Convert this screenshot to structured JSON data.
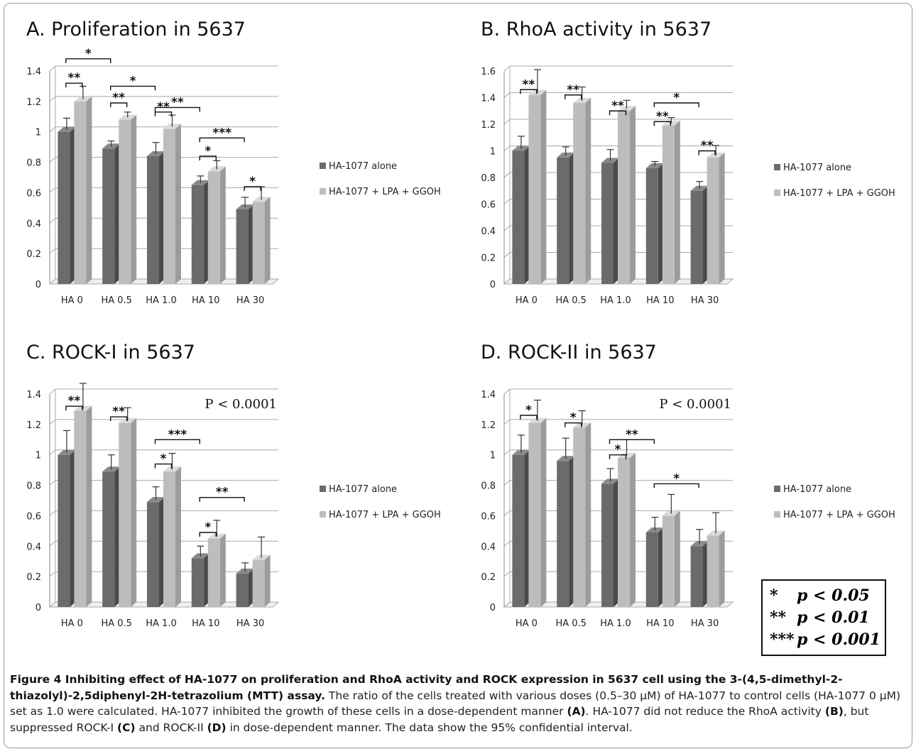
{
  "legend_items": [
    "HA-1077 alone",
    "HA-1077 + LPA + GGOH"
  ],
  "series_colors": [
    "#6b6b6b",
    "#bdbdbd"
  ],
  "significance_key": [
    {
      "symbol": "*",
      "text": "p < 0.05"
    },
    {
      "symbol": "**",
      "text": "p < 0.01"
    },
    {
      "symbol": "***",
      "text": "p < 0.001"
    }
  ],
  "caption": {
    "lead": "Figure 4 Inhibiting effect of HA-1077 on proliferation and RhoA activity and ROCK expression in 5637 cell using the 3-(4,5-dimethyl-2-thiazolyl)-2,5diphenyl-2H-tetrazolium (MTT) assay.",
    "p1": " The ratio of the cells treated with various doses (0.5–30 μM) of HA-1077 to control cells (HA-1077 0 μM) set as 1.0 were calculated. HA-1077 inhibited the growth of these cells in a dose-dependent manner ",
    "ref_a": "(A)",
    "p2": ". HA-1077 did not reduce the RhoA activity ",
    "ref_b": "(B)",
    "p3": ", but suppressed ROCK-I ",
    "ref_c": "(C)",
    "p4": " and ROCK-II ",
    "ref_d": "(D)",
    "p5": " in dose-dependent manner. The data show the 95% confidential interval."
  },
  "chart_data": [
    {
      "type": "bar",
      "title": "A. Proliferation in 5637",
      "categories": [
        "HA 0",
        "HA 0.5",
        "HA 1.0",
        "HA 10",
        "HA 30"
      ],
      "ylim": [
        0,
        1.4
      ],
      "yticks": [
        0,
        0.2,
        0.4,
        0.6,
        0.8,
        1,
        1.2,
        1.4
      ],
      "yticklabels": [
        "0",
        "0.2",
        "0.4",
        "0.6",
        "0.8",
        "1",
        "1.2",
        "1.4"
      ],
      "grid": true,
      "legend": "right",
      "series": [
        {
          "name": "HA-1077 alone",
          "values": [
            1.0,
            0.89,
            0.84,
            0.65,
            0.49
          ],
          "errors": [
            0.09,
            0.05,
            0.09,
            0.06,
            0.08
          ]
        },
        {
          "name": "HA-1077 + LPA + GGOH",
          "values": [
            1.2,
            1.08,
            1.02,
            0.74,
            0.54
          ],
          "errors": [
            0.1,
            0.05,
            0.09,
            0.07,
            0.1
          ]
        }
      ],
      "brackets": [
        {
          "from": [
            0,
            0
          ],
          "to": [
            0,
            1
          ],
          "y": 1.32,
          "label": "**"
        },
        {
          "from": [
            1,
            0
          ],
          "to": [
            1,
            1
          ],
          "y": 1.19,
          "label": "**"
        },
        {
          "from": [
            2,
            0
          ],
          "to": [
            2,
            1
          ],
          "y": 1.13,
          "label": "**"
        },
        {
          "from": [
            3,
            0
          ],
          "to": [
            3,
            1
          ],
          "y": 0.84,
          "label": "*"
        },
        {
          "from": [
            4,
            0
          ],
          "to": [
            4,
            1
          ],
          "y": 0.64,
          "label": "*"
        },
        {
          "from": [
            0,
            0
          ],
          "to": [
            1,
            0
          ],
          "y": 1.48,
          "label": "*"
        },
        {
          "from": [
            1,
            0
          ],
          "to": [
            2,
            0
          ],
          "y": 1.3,
          "label": "*"
        },
        {
          "from": [
            2,
            0
          ],
          "to": [
            3,
            0
          ],
          "y": 1.16,
          "label": "**"
        },
        {
          "from": [
            3,
            0
          ],
          "to": [
            4,
            0
          ],
          "y": 0.96,
          "label": "***"
        }
      ],
      "annotation": ""
    },
    {
      "type": "bar",
      "title": "B. RhoA activity in 5637",
      "categories": [
        "HA 0",
        "HA 0.5",
        "HA 1.0",
        "HA 10",
        "HA 30"
      ],
      "ylim": [
        0,
        1.6
      ],
      "yticks": [
        0,
        0.2,
        0.4,
        0.6,
        0.8,
        1,
        1.2,
        1.4,
        1.6
      ],
      "yticklabels": [
        "0",
        "0.2",
        "0.4",
        "0.6",
        "0.8",
        "1",
        "1.2",
        "1.4",
        "1.6"
      ],
      "grid": true,
      "legend": "right",
      "series": [
        {
          "name": "HA-1077 alone",
          "values": [
            1.0,
            0.95,
            0.91,
            0.87,
            0.7
          ],
          "errors": [
            0.11,
            0.08,
            0.1,
            0.05,
            0.07
          ]
        },
        {
          "name": "HA-1077 + LPA + GGOH",
          "values": [
            1.42,
            1.36,
            1.3,
            1.19,
            0.95
          ],
          "errors": [
            0.19,
            0.12,
            0.08,
            0.06,
            0.09
          ]
        }
      ],
      "brackets": [
        {
          "from": [
            0,
            0
          ],
          "to": [
            0,
            1
          ],
          "y": 1.46,
          "label": "**"
        },
        {
          "from": [
            1,
            0
          ],
          "to": [
            1,
            1
          ],
          "y": 1.42,
          "label": "**"
        },
        {
          "from": [
            2,
            0
          ],
          "to": [
            2,
            1
          ],
          "y": 1.3,
          "label": "**"
        },
        {
          "from": [
            3,
            0
          ],
          "to": [
            3,
            1
          ],
          "y": 1.22,
          "label": "**"
        },
        {
          "from": [
            4,
            0
          ],
          "to": [
            4,
            1
          ],
          "y": 1.0,
          "label": "**"
        },
        {
          "from": [
            3,
            0
          ],
          "to": [
            4,
            0
          ],
          "y": 1.36,
          "label": "*"
        }
      ],
      "annotation": ""
    },
    {
      "type": "bar",
      "title": "C. ROCK-I in 5637",
      "categories": [
        "HA 0",
        "HA 0.5",
        "HA 1.0",
        "HA 10",
        "HA 30"
      ],
      "ylim": [
        0,
        1.4
      ],
      "yticks": [
        0,
        0.2,
        0.4,
        0.6,
        0.8,
        1,
        1.2,
        1.4
      ],
      "yticklabels": [
        "0",
        "0.2",
        "0.4",
        "0.6",
        "0.8",
        "1",
        "1.2",
        "1.4"
      ],
      "grid": true,
      "legend": "right",
      "series": [
        {
          "name": "HA-1077 alone",
          "values": [
            1.0,
            0.89,
            0.69,
            0.32,
            0.22
          ],
          "errors": [
            0.16,
            0.11,
            0.1,
            0.08,
            0.07
          ]
        },
        {
          "name": "HA-1077 + LPA + GGOH",
          "values": [
            1.29,
            1.21,
            0.89,
            0.45,
            0.31
          ],
          "errors": [
            0.18,
            0.1,
            0.12,
            0.12,
            0.15
          ]
        }
      ],
      "brackets": [
        {
          "from": [
            0,
            0
          ],
          "to": [
            0,
            1
          ],
          "y": 1.32,
          "label": "**"
        },
        {
          "from": [
            1,
            0
          ],
          "to": [
            1,
            1
          ],
          "y": 1.25,
          "label": "**"
        },
        {
          "from": [
            2,
            0
          ],
          "to": [
            2,
            1
          ],
          "y": 0.94,
          "label": "*"
        },
        {
          "from": [
            3,
            0
          ],
          "to": [
            3,
            1
          ],
          "y": 0.49,
          "label": "*"
        },
        {
          "from": [
            2,
            0
          ],
          "to": [
            3,
            0
          ],
          "y": 1.1,
          "label": "***"
        },
        {
          "from": [
            3,
            0
          ],
          "to": [
            4,
            0
          ],
          "y": 0.72,
          "label": "**"
        }
      ],
      "annotation": "P < 0.0001"
    },
    {
      "type": "bar",
      "title": "D. ROCK-II in 5637",
      "categories": [
        "HA 0",
        "HA 0.5",
        "HA 1.0",
        "HA 10",
        "HA 30"
      ],
      "ylim": [
        0,
        1.4
      ],
      "yticks": [
        0,
        0.2,
        0.4,
        0.6,
        0.8,
        1,
        1.2,
        1.4
      ],
      "yticklabels": [
        "0",
        "0.2",
        "0.4",
        "0.6",
        "0.8",
        "1",
        "1.2",
        "1.4"
      ],
      "grid": true,
      "legend": "right",
      "series": [
        {
          "name": "HA-1077 alone",
          "values": [
            1.0,
            0.96,
            0.81,
            0.49,
            0.4
          ],
          "errors": [
            0.13,
            0.15,
            0.1,
            0.1,
            0.11
          ]
        },
        {
          "name": "HA-1077 + LPA + GGOH",
          "values": [
            1.21,
            1.18,
            0.98,
            0.6,
            0.47
          ],
          "errors": [
            0.15,
            0.11,
            0.12,
            0.14,
            0.15
          ]
        }
      ],
      "brackets": [
        {
          "from": [
            0,
            0
          ],
          "to": [
            0,
            1
          ],
          "y": 1.26,
          "label": "*"
        },
        {
          "from": [
            1,
            0
          ],
          "to": [
            1,
            1
          ],
          "y": 1.21,
          "label": "*"
        },
        {
          "from": [
            2,
            0
          ],
          "to": [
            2,
            1
          ],
          "y": 1.0,
          "label": "*"
        },
        {
          "from": [
            2,
            0
          ],
          "to": [
            3,
            0
          ],
          "y": 1.1,
          "label": "**"
        },
        {
          "from": [
            3,
            0
          ],
          "to": [
            4,
            0
          ],
          "y": 0.81,
          "label": "*"
        }
      ],
      "annotation": "P < 0.0001"
    }
  ]
}
